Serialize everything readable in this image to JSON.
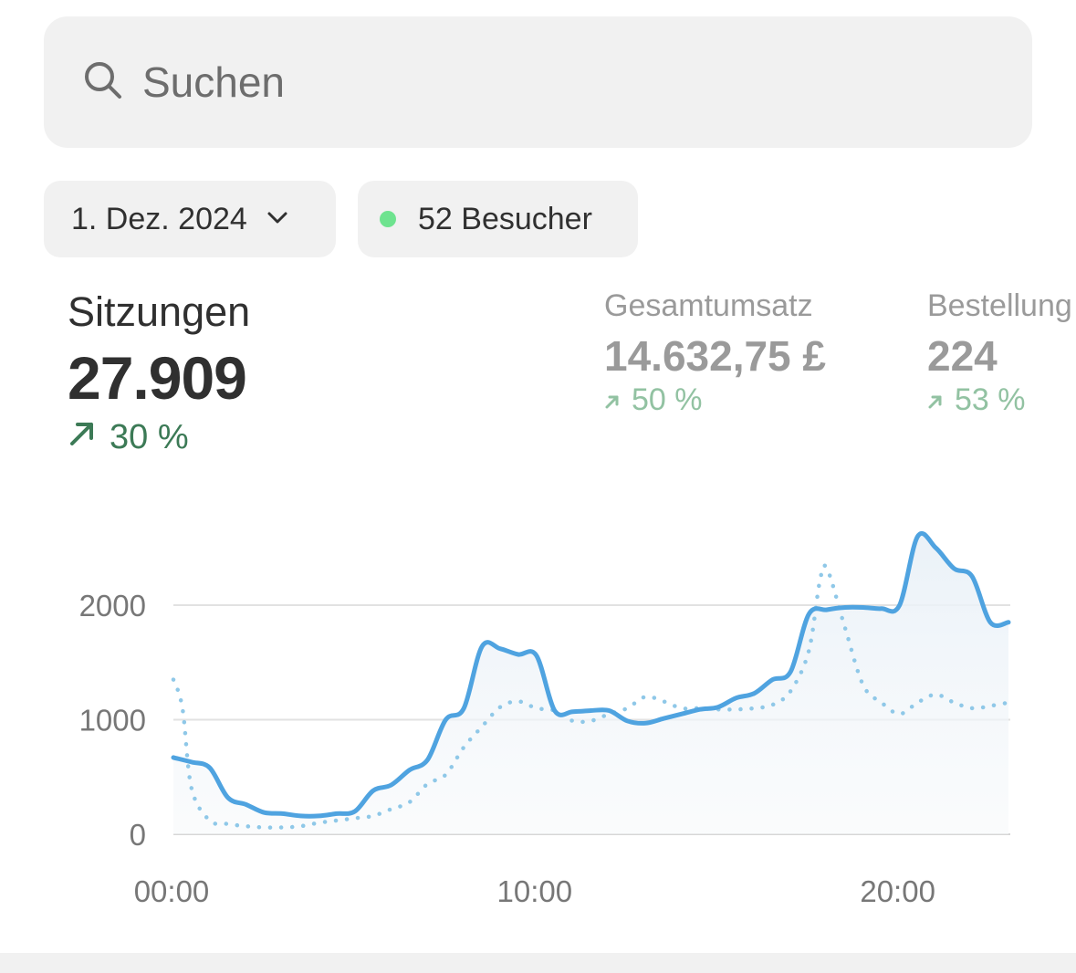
{
  "search": {
    "placeholder": "Suchen",
    "icon": "search-icon"
  },
  "filters": {
    "date": {
      "label": "1. Dez. 2024",
      "icon": "chevron-down-icon"
    },
    "visitors": {
      "label": "52 Besucher",
      "dot_color": "#6ee38f"
    }
  },
  "metrics": [
    {
      "label": "Sitzungen",
      "value": "27.909",
      "change": "30 %"
    },
    {
      "label": "Gesamtumsatz",
      "value": "14.632,75 £",
      "change": "50 %"
    },
    {
      "label": "Bestellung",
      "value": "224",
      "change": "53 %"
    }
  ],
  "colors": {
    "line": "#4fa3e0",
    "dotted": "#8fc8e8",
    "accent_green": "#3c7a56",
    "grid": "#e2e2e2"
  },
  "chart_data": {
    "type": "line",
    "x_ticks": [
      "00:00",
      "10:00",
      "20:00"
    ],
    "y_ticks": [
      "0",
      "1000",
      "2000"
    ],
    "ylim": [
      0,
      2700
    ],
    "xlim": [
      0,
      23
    ],
    "series": [
      {
        "style": "solid",
        "x": [
          0,
          0.5,
          1,
          1.5,
          2,
          2.5,
          3,
          3.5,
          4,
          4.5,
          5,
          5.5,
          6,
          6.5,
          7,
          7.5,
          8,
          8.5,
          9,
          9.5,
          10,
          10.5,
          11,
          11.5,
          12,
          12.5,
          13,
          13.5,
          14,
          14.5,
          15,
          15.5,
          16,
          16.5,
          17,
          17.5,
          18,
          18.5,
          19,
          19.5,
          20,
          20.5,
          21,
          21.5,
          22,
          22.5,
          23
        ],
        "values": [
          670,
          630,
          580,
          320,
          260,
          190,
          180,
          160,
          160,
          180,
          200,
          380,
          430,
          560,
          650,
          1000,
          1100,
          1640,
          1620,
          1570,
          1560,
          1080,
          1070,
          1080,
          1080,
          990,
          970,
          1010,
          1050,
          1090,
          1110,
          1190,
          1230,
          1350,
          1420,
          1920,
          1960,
          1980,
          1980,
          1970,
          2000,
          2600,
          2500,
          2320,
          2250,
          1850,
          1850
        ]
      },
      {
        "style": "dotted",
        "x": [
          0,
          0.25,
          0.5,
          1,
          1.5,
          2,
          2.5,
          3,
          3.5,
          4,
          4.5,
          5,
          5.5,
          6,
          6.5,
          7,
          7.5,
          8,
          8.5,
          9,
          9.5,
          10,
          10.5,
          11,
          11.5,
          12,
          12.5,
          13,
          13.5,
          14,
          14.5,
          15,
          15.5,
          16,
          16.5,
          17,
          17.5,
          17.8,
          18,
          18.5,
          19,
          19.5,
          20,
          20.5,
          21,
          21.5,
          22,
          22.5,
          23
        ],
        "values": [
          1350,
          1100,
          400,
          120,
          90,
          70,
          60,
          60,
          70,
          100,
          120,
          140,
          160,
          220,
          280,
          440,
          520,
          760,
          940,
          1110,
          1160,
          1100,
          1080,
          990,
          990,
          1050,
          1100,
          1200,
          1160,
          1100,
          1100,
          1090,
          1090,
          1100,
          1130,
          1250,
          1600,
          2200,
          2320,
          1800,
          1300,
          1150,
          1050,
          1150,
          1220,
          1150,
          1100,
          1120,
          1150
        ]
      }
    ]
  }
}
